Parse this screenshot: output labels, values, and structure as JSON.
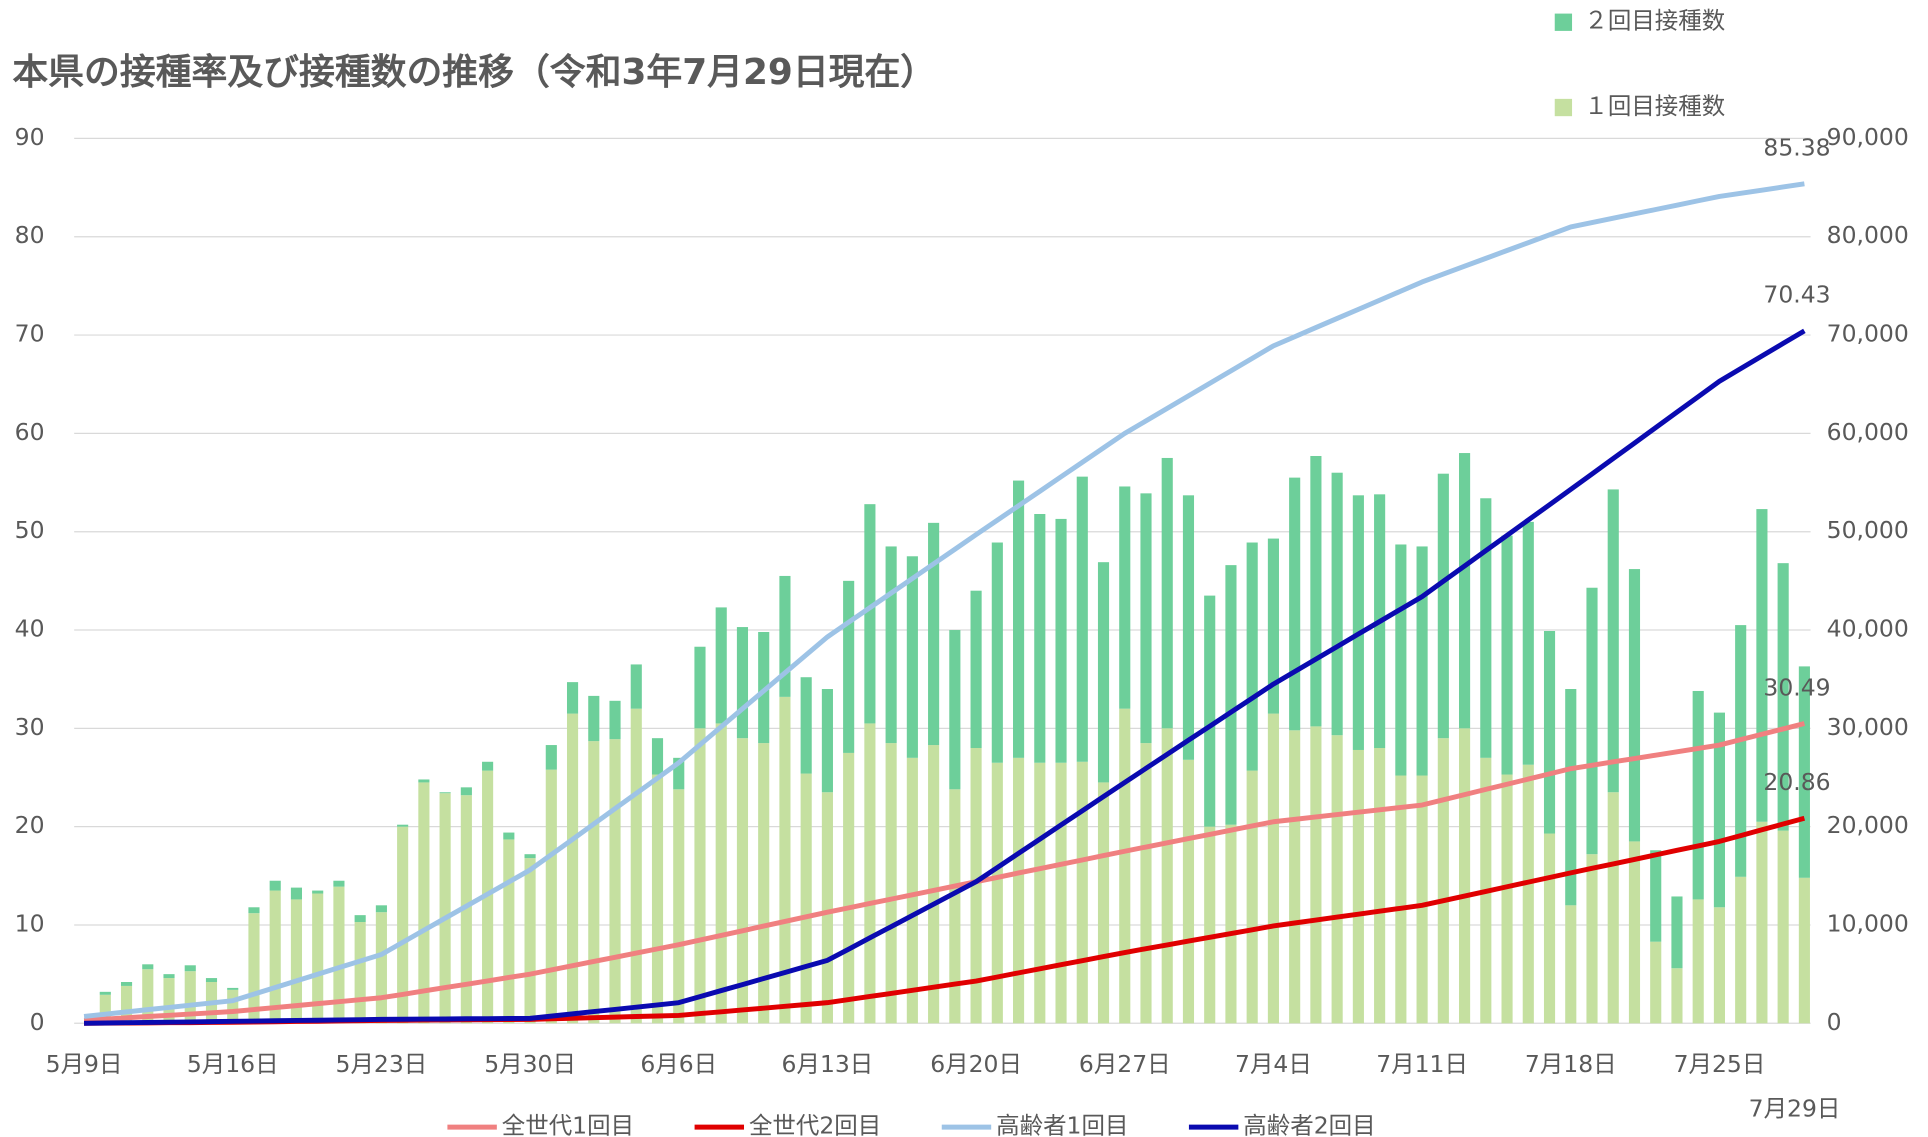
{
  "chart_data": {
    "type": "combo",
    "title": "本県の接種率及び接種数の推移（令和3年7月29日現在）",
    "categories": [
      "5月9日",
      null,
      null,
      null,
      null,
      null,
      null,
      "5月16日",
      null,
      null,
      null,
      null,
      null,
      null,
      "5月23日",
      null,
      null,
      null,
      null,
      null,
      null,
      "5月30日",
      null,
      null,
      null,
      null,
      null,
      null,
      "6月6日",
      null,
      null,
      null,
      null,
      null,
      null,
      "6月13日",
      null,
      null,
      null,
      null,
      null,
      null,
      "6月20日",
      null,
      null,
      null,
      null,
      null,
      null,
      "6月27日",
      null,
      null,
      null,
      null,
      null,
      null,
      "7月4日",
      null,
      null,
      null,
      null,
      null,
      null,
      "7月11日",
      null,
      null,
      null,
      null,
      null,
      null,
      "7月18日",
      null,
      null,
      null,
      null,
      null,
      null,
      "7月25日",
      null,
      null,
      null,
      "7月29日"
    ],
    "ylim": [
      0,
      90
    ],
    "yticks": [
      0,
      10,
      20,
      30,
      40,
      50,
      60,
      70,
      80,
      90
    ],
    "y2lim": [
      0,
      90000
    ],
    "y2ticks": [
      0,
      {
        "value": 10000,
        "label": "10,000"
      },
      {
        "value": 20000,
        "label": "20,000"
      },
      {
        "value": 30000,
        "label": "30,000"
      },
      {
        "value": 40000,
        "label": "40,000"
      },
      {
        "value": 50000,
        "label": "50,000"
      },
      {
        "value": 60000,
        "label": "60,000"
      },
      {
        "value": 70000,
        "label": "70,000"
      },
      {
        "value": 80000,
        "label": "80,000"
      },
      {
        "value": 90000,
        "label": "90,000"
      }
    ],
    "grid": true,
    "stacked": true,
    "last_value_labels": true,
    "series": [
      {
        "name": "１回目接種数",
        "type": "bar",
        "axis": "y2",
        "color": "#c5e0a0",
        "values": [
          0,
          2900,
          3800,
          5500,
          4600,
          5300,
          4200,
          3400,
          11200,
          13500,
          12600,
          13200,
          13900,
          10300,
          11300,
          20000,
          24500,
          23400,
          23200,
          25700,
          18700,
          16800,
          25800,
          31500,
          28700,
          28900,
          32000,
          25300,
          23800,
          30000,
          30500,
          29000,
          28500,
          33200,
          25400,
          23500,
          27500,
          30500,
          28500,
          27000,
          28300,
          23800,
          28000,
          26500,
          27000,
          26500,
          26500,
          26600,
          24500,
          32000,
          28500,
          30000,
          26800,
          20000,
          20200,
          25700,
          31500,
          29800,
          30200,
          29300,
          27800,
          28000,
          25200,
          25200,
          29000,
          30000,
          27000,
          25300,
          26300,
          19300,
          12000,
          17200,
          23500,
          18500,
          8300,
          5600,
          12600,
          11800,
          14900,
          20500,
          19600,
          14800
        ]
      },
      {
        "name": "２回目接種数",
        "type": "bar",
        "axis": "y2",
        "color": "#6dcf9a",
        "values": [
          0,
          300,
          400,
          500,
          400,
          600,
          400,
          200,
          600,
          1000,
          1200,
          300,
          600,
          700,
          700,
          200,
          300,
          100,
          800,
          900,
          700,
          400,
          2500,
          3200,
          4600,
          3900,
          4500,
          3700,
          3200,
          8300,
          11800,
          11300,
          11300,
          12300,
          9800,
          10500,
          17500,
          22300,
          20000,
          20500,
          22600,
          16200,
          16000,
          22400,
          28200,
          25300,
          24800,
          29000,
          22400,
          22600,
          25400,
          27500,
          26900,
          23500,
          26400,
          23200,
          17800,
          25700,
          27500,
          26700,
          25900,
          25800,
          23500,
          23300,
          26900,
          28000,
          26400,
          24300,
          24700,
          20600,
          22000,
          27100,
          30800,
          27700,
          9300,
          7300,
          21200,
          19800,
          25600,
          31800,
          27200,
          21500
        ]
      },
      {
        "name": "全世代1回目",
        "type": "line",
        "color": "#f08080",
        "values": [
          0.3,
          0.43,
          0.56,
          0.69,
          0.81,
          0.94,
          1.07,
          1.2,
          1.4,
          1.6,
          1.8,
          2.0,
          2.2,
          2.4,
          2.6,
          2.94,
          3.29,
          3.63,
          3.97,
          4.31,
          4.66,
          5.0,
          5.43,
          5.86,
          6.29,
          6.71,
          7.14,
          7.57,
          8.0,
          8.47,
          8.94,
          9.41,
          9.89,
          10.36,
          10.83,
          11.3,
          11.74,
          12.19,
          12.63,
          13.07,
          13.51,
          13.96,
          14.4,
          14.84,
          15.29,
          15.73,
          16.17,
          16.61,
          17.06,
          17.5,
          17.93,
          18.36,
          18.79,
          19.21,
          19.64,
          20.07,
          20.5,
          20.74,
          20.99,
          21.23,
          21.47,
          21.71,
          21.96,
          22.2,
          22.73,
          23.26,
          23.79,
          24.31,
          24.84,
          25.37,
          25.9,
          26.24,
          26.59,
          26.93,
          27.27,
          27.61,
          27.96,
          28.3,
          28.85,
          29.4,
          29.94,
          30.49
        ]
      },
      {
        "name": "全世代2回目",
        "type": "line",
        "color": "#e00000",
        "values": [
          0,
          0.01,
          0.03,
          0.04,
          0.06,
          0.07,
          0.09,
          0.1,
          0.13,
          0.16,
          0.19,
          0.21,
          0.24,
          0.27,
          0.3,
          0.31,
          0.33,
          0.34,
          0.36,
          0.37,
          0.39,
          0.4,
          0.46,
          0.51,
          0.57,
          0.63,
          0.69,
          0.74,
          0.8,
          0.99,
          1.17,
          1.36,
          1.54,
          1.73,
          1.91,
          2.1,
          2.41,
          2.73,
          3.04,
          3.36,
          3.67,
          3.99,
          4.3,
          4.71,
          5.13,
          5.54,
          5.96,
          6.37,
          6.79,
          7.2,
          7.59,
          7.97,
          8.36,
          8.74,
          9.13,
          9.51,
          9.9,
          10.2,
          10.5,
          10.8,
          11.1,
          11.4,
          11.7,
          12.0,
          12.47,
          12.94,
          13.41,
          13.89,
          14.36,
          14.83,
          15.3,
          15.76,
          16.21,
          16.67,
          17.13,
          17.59,
          18.04,
          18.5,
          19.09,
          19.68,
          20.27,
          20.86
        ]
      },
      {
        "name": "高齢者1回目",
        "type": "line",
        "color": "#9dc3e6",
        "values": [
          0.7,
          0.93,
          1.16,
          1.39,
          1.61,
          1.84,
          2.07,
          2.3,
          2.97,
          3.64,
          4.31,
          4.99,
          5.66,
          6.33,
          7.0,
          8.23,
          9.46,
          10.69,
          11.91,
          13.14,
          14.37,
          15.6,
          17.16,
          18.71,
          20.27,
          21.83,
          23.39,
          24.94,
          26.5,
          28.33,
          30.16,
          31.99,
          33.81,
          35.64,
          37.47,
          39.3,
          40.79,
          42.27,
          43.76,
          45.24,
          46.73,
          48.21,
          49.7,
          51.17,
          52.64,
          54.11,
          55.59,
          57.06,
          58.53,
          60.0,
          61.27,
          62.54,
          63.81,
          65.09,
          66.36,
          67.63,
          68.9,
          69.83,
          70.76,
          71.69,
          72.61,
          73.54,
          74.47,
          75.4,
          76.2,
          77.0,
          77.8,
          78.6,
          79.4,
          80.2,
          81.0,
          81.44,
          81.89,
          82.33,
          82.77,
          83.21,
          83.66,
          84.1,
          84.42,
          84.74,
          85.06,
          85.38
        ]
      },
      {
        "name": "高齢者2回目",
        "type": "line",
        "color": "#0a0ab0",
        "values": [
          0,
          0.03,
          0.06,
          0.09,
          0.11,
          0.14,
          0.17,
          0.2,
          0.23,
          0.26,
          0.29,
          0.31,
          0.34,
          0.37,
          0.4,
          0.41,
          0.43,
          0.44,
          0.46,
          0.47,
          0.49,
          0.5,
          0.73,
          0.96,
          1.19,
          1.41,
          1.64,
          1.87,
          2.1,
          2.71,
          3.33,
          3.94,
          4.56,
          5.17,
          5.79,
          6.4,
          7.54,
          8.69,
          9.83,
          10.97,
          12.11,
          13.26,
          14.4,
          15.84,
          17.29,
          18.73,
          20.17,
          21.61,
          23.06,
          24.5,
          25.93,
          27.36,
          28.79,
          30.21,
          31.64,
          33.07,
          34.5,
          35.77,
          37.04,
          38.31,
          39.59,
          40.86,
          42.13,
          43.4,
          44.96,
          46.51,
          48.07,
          49.63,
          51.19,
          52.74,
          54.3,
          55.87,
          57.44,
          59.01,
          60.59,
          62.16,
          63.73,
          65.3,
          66.58,
          67.87,
          69.15,
          70.43
        ]
      }
    ]
  }
}
